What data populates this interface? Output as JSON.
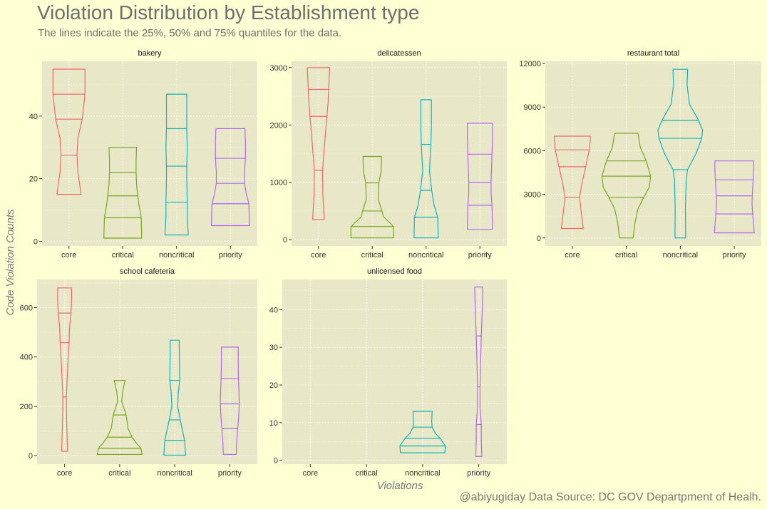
{
  "title": "Violation Distribution by Establishment type",
  "subtitle": "The lines indicate the 25%, 50% and 75% quantiles for the data.",
  "caption": "@abiyugiday   Data Source: DC GOV Departpment of Healh.",
  "colors": {
    "background": "#ffffd4",
    "panel": "#e8e8c8",
    "core": "#f0686b",
    "critical": "#7aa51e",
    "noncritical": "#12b2ba",
    "priority": "#b267f0"
  },
  "chart_data": {
    "type": "violin",
    "xlabel": "Violations",
    "ylabel": "Code Violation Counts",
    "categories": [
      "core",
      "critical",
      "noncritical",
      "priority"
    ],
    "panels": [
      {
        "name": "bakery",
        "ylim": [
          -1.5,
          57.5
        ],
        "yticks": [
          0,
          20,
          40
        ],
        "violins": [
          {
            "category": "core",
            "min": 15,
            "max": 55,
            "q": [
              27.5,
              39,
              47
            ],
            "profile": [
              [
                15,
                0.5
              ],
              [
                22,
                0.37
              ],
              [
                27.5,
                0.33
              ],
              [
                33,
                0.37
              ],
              [
                39,
                0.55
              ],
              [
                44,
                0.62
              ],
              [
                47,
                0.66
              ],
              [
                51,
                0.66
              ],
              [
                55,
                0.66
              ]
            ]
          },
          {
            "category": "critical",
            "min": 1,
            "max": 30,
            "q": [
              7.5,
              14.5,
              22
            ],
            "profile": [
              [
                1,
                0.78
              ],
              [
                7.5,
                0.76
              ],
              [
                12,
                0.66
              ],
              [
                14.5,
                0.62
              ],
              [
                18,
                0.57
              ],
              [
                22,
                0.55
              ],
              [
                26,
                0.55
              ],
              [
                30,
                0.57
              ]
            ]
          },
          {
            "category": "noncritical",
            "min": 2,
            "max": 47,
            "q": [
              12.5,
              24,
              36
            ],
            "profile": [
              [
                2,
                0.48
              ],
              [
                8,
                0.44
              ],
              [
                12.5,
                0.44
              ],
              [
                20,
                0.42
              ],
              [
                24,
                0.42
              ],
              [
                30,
                0.44
              ],
              [
                36,
                0.42
              ],
              [
                41,
                0.42
              ],
              [
                47,
                0.42
              ]
            ]
          },
          {
            "category": "priority",
            "min": 5,
            "max": 36,
            "q": [
              12,
              18.5,
              26.5
            ],
            "profile": [
              [
                5,
                0.78
              ],
              [
                10,
                0.77
              ],
              [
                12,
                0.76
              ],
              [
                15,
                0.66
              ],
              [
                18.5,
                0.58
              ],
              [
                22,
                0.58
              ],
              [
                26.5,
                0.62
              ],
              [
                32,
                0.62
              ],
              [
                36,
                0.6
              ]
            ]
          }
        ]
      },
      {
        "name": "delicatessen",
        "ylim": [
          -110,
          3110
        ],
        "yticks": [
          0,
          1000,
          2000,
          3000
        ],
        "violins": [
          {
            "category": "core",
            "min": 350,
            "max": 3000,
            "q": [
              1210,
              2150,
              2620
            ],
            "profile": [
              [
                350,
                0.24
              ],
              [
                800,
                0.18
              ],
              [
                1210,
                0.17
              ],
              [
                1700,
                0.26
              ],
              [
                2150,
                0.35
              ],
              [
                2400,
                0.4
              ],
              [
                2620,
                0.42
              ],
              [
                2800,
                0.44
              ],
              [
                3000,
                0.46
              ]
            ]
          },
          {
            "category": "critical",
            "min": 30,
            "max": 1450,
            "q": [
              230,
              500,
              990
            ],
            "profile": [
              [
                30,
                0.88
              ],
              [
                230,
                0.88
              ],
              [
                400,
                0.46
              ],
              [
                500,
                0.4
              ],
              [
                700,
                0.25
              ],
              [
                990,
                0.27
              ],
              [
                1200,
                0.37
              ],
              [
                1450,
                0.38
              ]
            ]
          },
          {
            "category": "noncritical",
            "min": 30,
            "max": 2440,
            "q": [
              390,
              860,
              1660
            ],
            "profile": [
              [
                30,
                0.5
              ],
              [
                390,
                0.48
              ],
              [
                600,
                0.33
              ],
              [
                860,
                0.23
              ],
              [
                1200,
                0.14
              ],
              [
                1660,
                0.2
              ],
              [
                2000,
                0.22
              ],
              [
                2440,
                0.22
              ]
            ]
          },
          {
            "category": "priority",
            "min": 180,
            "max": 2030,
            "q": [
              600,
              1000,
              1490
            ],
            "profile": [
              [
                180,
                0.52
              ],
              [
                600,
                0.5
              ],
              [
                800,
                0.46
              ],
              [
                1000,
                0.46
              ],
              [
                1250,
                0.48
              ],
              [
                1490,
                0.5
              ],
              [
                1800,
                0.52
              ],
              [
                2030,
                0.52
              ]
            ]
          }
        ]
      },
      {
        "name": "restaurant total",
        "ylim": [
          -550,
          12150
        ],
        "yticks": [
          0,
          3000,
          6000,
          9000,
          12000
        ],
        "violins": [
          {
            "category": "core",
            "min": 650,
            "max": 7000,
            "q": [
              2800,
              4900,
              6050
            ],
            "profile": [
              [
                650,
                0.45
              ],
              [
                2000,
                0.35
              ],
              [
                2800,
                0.3
              ],
              [
                3800,
                0.4
              ],
              [
                4900,
                0.55
              ],
              [
                6050,
                0.7
              ],
              [
                6700,
                0.74
              ],
              [
                7000,
                0.74
              ]
            ]
          },
          {
            "category": "critical",
            "min": 0,
            "max": 7200,
            "q": [
              2800,
              4250,
              5300
            ],
            "profile": [
              [
                0,
                0.28
              ],
              [
                1000,
                0.35
              ],
              [
                2000,
                0.48
              ],
              [
                2800,
                0.72
              ],
              [
                3500,
                0.95
              ],
              [
                4250,
                1.0
              ],
              [
                5300,
                0.82
              ],
              [
                6200,
                0.58
              ],
              [
                7200,
                0.48
              ]
            ]
          },
          {
            "category": "noncritical",
            "min": 0,
            "max": 11600,
            "q": [
              4700,
              6850,
              8100
            ],
            "profile": [
              [
                0,
                0.22
              ],
              [
                2000,
                0.21
              ],
              [
                4000,
                0.24
              ],
              [
                4700,
                0.3
              ],
              [
                5800,
                0.65
              ],
              [
                6850,
                0.88
              ],
              [
                7400,
                0.92
              ],
              [
                8100,
                0.75
              ],
              [
                9200,
                0.38
              ],
              [
                10500,
                0.28
              ],
              [
                11600,
                0.3
              ]
            ]
          },
          {
            "category": "priority",
            "min": 350,
            "max": 5300,
            "q": [
              1650,
              2900,
              4000
            ],
            "profile": [
              [
                350,
                0.82
              ],
              [
                1000,
                0.79
              ],
              [
                1650,
                0.76
              ],
              [
                2300,
                0.73
              ],
              [
                2900,
                0.74
              ],
              [
                3500,
                0.76
              ],
              [
                4000,
                0.78
              ],
              [
                4700,
                0.8
              ],
              [
                5300,
                0.8
              ]
            ]
          }
        ]
      },
      {
        "name": "school cafeteria",
        "ylim": [
          -34,
          714
        ],
        "yticks": [
          0,
          200,
          400,
          600
        ],
        "violins": [
          {
            "category": "core",
            "min": 18,
            "max": 680,
            "q": [
              238,
              458,
              578
            ],
            "profile": [
              [
                18,
                0.12
              ],
              [
                150,
                0.08
              ],
              [
                238,
                0.07
              ],
              [
                350,
                0.12
              ],
              [
                458,
                0.18
              ],
              [
                520,
                0.2
              ],
              [
                578,
                0.26
              ],
              [
                630,
                0.28
              ],
              [
                680,
                0.28
              ]
            ]
          },
          {
            "category": "critical",
            "min": 5,
            "max": 305,
            "q": [
              30,
              75,
              165
            ],
            "profile": [
              [
                5,
                0.9
              ],
              [
                30,
                0.86
              ],
              [
                50,
                0.68
              ],
              [
                75,
                0.5
              ],
              [
                110,
                0.34
              ],
              [
                165,
                0.26
              ],
              [
                220,
                0.08
              ],
              [
                260,
                0.12
              ],
              [
                305,
                0.22
              ]
            ]
          },
          {
            "category": "noncritical",
            "min": 2,
            "max": 468,
            "q": [
              62,
              145,
              305
            ],
            "profile": [
              [
                2,
                0.44
              ],
              [
                62,
                0.4
              ],
              [
                100,
                0.32
              ],
              [
                145,
                0.22
              ],
              [
                200,
                0.12
              ],
              [
                250,
                0.14
              ],
              [
                305,
                0.2
              ],
              [
                380,
                0.19
              ],
              [
                468,
                0.18
              ]
            ]
          },
          {
            "category": "priority",
            "min": 5,
            "max": 440,
            "q": [
              110,
              210,
              312
            ],
            "profile": [
              [
                5,
                0.26
              ],
              [
                60,
                0.28
              ],
              [
                110,
                0.32
              ],
              [
                160,
                0.36
              ],
              [
                210,
                0.38
              ],
              [
                260,
                0.37
              ],
              [
                312,
                0.35
              ],
              [
                380,
                0.34
              ],
              [
                440,
                0.34
              ]
            ]
          }
        ]
      },
      {
        "name": "unlicensed food",
        "ylim": [
          -1,
          48
        ],
        "yticks": [
          0,
          10,
          20,
          30,
          40
        ],
        "violins": [
          {
            "category": "noncritical",
            "min": 2,
            "max": 13,
            "q": [
              3.8,
              5.8,
              8.8
            ],
            "profile": [
              [
                2,
                0.88
              ],
              [
                3.8,
                0.9
              ],
              [
                4.8,
                0.8
              ],
              [
                5.8,
                0.7
              ],
              [
                7.2,
                0.5
              ],
              [
                8.8,
                0.38
              ],
              [
                10.5,
                0.36
              ],
              [
                13,
                0.38
              ]
            ]
          },
          {
            "category": "priority",
            "min": 1,
            "max": 46,
            "q": [
              9.5,
              19.5,
              33
            ],
            "profile": [
              [
                1,
                0.12
              ],
              [
                5,
                0.1
              ],
              [
                9.5,
                0.1
              ],
              [
                14,
                0.05
              ],
              [
                19.5,
                0.05
              ],
              [
                26,
                0.07
              ],
              [
                33,
                0.1
              ],
              [
                40,
                0.14
              ],
              [
                46,
                0.16
              ]
            ]
          }
        ]
      }
    ]
  }
}
